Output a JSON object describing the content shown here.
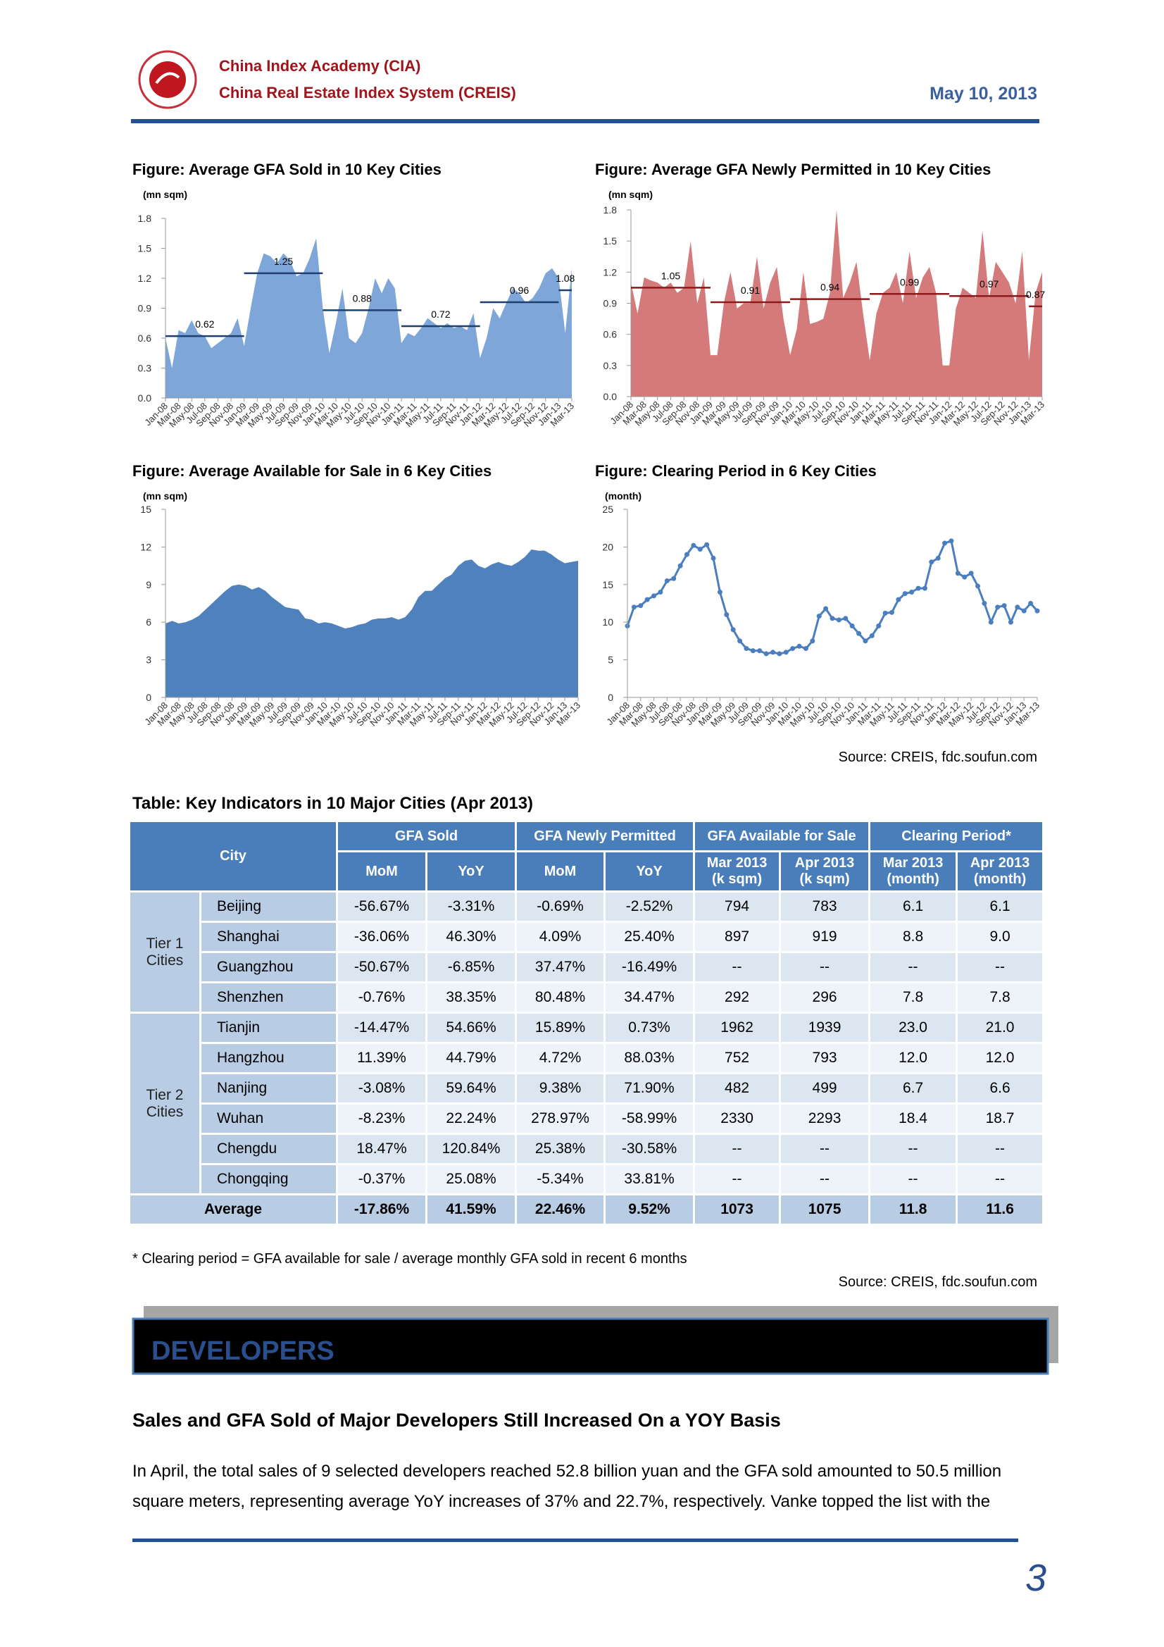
{
  "header": {
    "org1": "China Index Academy (CIA)",
    "org2": "China Real Estate Index System (CREIS)",
    "date": "May 10, 2013"
  },
  "chart_data": [
    {
      "type": "area",
      "title": "Figure: Average GFA Sold in 10 Key Cities",
      "unit": "(mn sqm)",
      "color": "#7ea6d8",
      "categories": [
        "Jan-08",
        null,
        "Mar-08",
        null,
        "May-08",
        null,
        "Jul-08",
        null,
        "Sep-08",
        null,
        "Nov-08",
        null,
        "Jan-09",
        null,
        "Mar-09",
        null,
        "May-09",
        null,
        "Jul-09",
        null,
        "Sep-09",
        null,
        "Nov-09",
        null,
        "Jan-10",
        null,
        "Mar-10",
        null,
        "May-10",
        null,
        "Jul-10",
        null,
        "Sep-10",
        null,
        "Nov-10",
        null,
        "Jan-11",
        null,
        "Mar-11",
        null,
        "May-11",
        null,
        "Jul-11",
        null,
        "Sep-11",
        null,
        "Nov-11",
        null,
        "Jan-12",
        null,
        "Mar-12",
        null,
        "May-12",
        null,
        "Jul-12",
        null,
        "Sep-12",
        null,
        "Nov-12",
        null,
        "Jan-13",
        null,
        "Mar-13"
      ],
      "values": [
        0.6,
        0.3,
        0.68,
        0.65,
        0.78,
        0.65,
        0.62,
        0.5,
        0.55,
        0.6,
        0.65,
        0.8,
        0.52,
        0.9,
        1.25,
        1.45,
        1.42,
        1.35,
        1.45,
        1.38,
        1.22,
        1.25,
        1.4,
        1.6,
        0.9,
        0.45,
        0.75,
        1.1,
        0.6,
        0.55,
        0.65,
        0.9,
        1.2,
        1.05,
        1.2,
        1.1,
        0.55,
        0.65,
        0.62,
        0.7,
        0.8,
        0.75,
        0.7,
        0.75,
        0.7,
        0.72,
        0.68,
        0.85,
        0.4,
        0.6,
        0.9,
        0.8,
        0.95,
        1.1,
        1.05,
        0.95,
        1.0,
        1.1,
        1.25,
        1.3,
        1.2,
        0.65,
        1.3
      ],
      "ylim": [
        0,
        1.8
      ],
      "yticks": [
        {
          "value": 0,
          "label": "0.0"
        },
        0.3,
        0.6,
        0.9,
        1.2,
        1.5,
        1.8
      ],
      "period_averages": {
        "values": [
          0.62,
          1.25,
          0.88,
          0.72,
          0.96,
          1.08
        ],
        "color": "#1f3f6e"
      }
    },
    {
      "type": "area",
      "title": "Figure: Average GFA Newly Permitted in 10 Key Cities",
      "unit": "(mn sqm)",
      "color": "#d57a7a",
      "categories": [
        "Jan-08",
        null,
        "Mar-08",
        null,
        "May-08",
        null,
        "Jul-08",
        null,
        "Sep-08",
        null,
        "Nov-08",
        null,
        "Jan-09",
        null,
        "Mar-09",
        null,
        "May-09",
        null,
        "Jul-09",
        null,
        "Sep-09",
        null,
        "Nov-09",
        null,
        "Jan-10",
        null,
        "Mar-10",
        null,
        "May-10",
        null,
        "Jul-10",
        null,
        "Sep-10",
        null,
        "Nov-10",
        null,
        "Jan-11",
        null,
        "Mar-11",
        null,
        "May-11",
        null,
        "Jul-11",
        null,
        "Sep-11",
        null,
        "Nov-11",
        null,
        "Jan-12",
        null,
        "Mar-12",
        null,
        "May-12",
        null,
        "Jul-12",
        null,
        "Sep-12",
        null,
        "Nov-12",
        null,
        "Jan-13",
        null,
        "Mar-13"
      ],
      "values": [
        1.1,
        0.8,
        1.15,
        1.12,
        1.1,
        1.05,
        1.1,
        1.0,
        1.05,
        1.5,
        0.9,
        1.15,
        0.4,
        0.4,
        0.9,
        1.2,
        0.85,
        0.9,
        0.9,
        1.35,
        0.85,
        1.1,
        1.25,
        0.75,
        0.4,
        0.65,
        1.2,
        0.7,
        0.72,
        0.75,
        1.0,
        1.8,
        0.95,
        1.1,
        1.3,
        0.8,
        0.35,
        0.8,
        1.0,
        1.05,
        1.2,
        0.9,
        1.4,
        0.95,
        1.15,
        1.25,
        1.0,
        0.3,
        0.3,
        0.85,
        1.05,
        1.0,
        0.95,
        1.6,
        0.95,
        1.3,
        1.2,
        1.1,
        0.9,
        1.4,
        0.35,
        1.0,
        1.2
      ],
      "ylim": [
        0,
        1.8
      ],
      "yticks": [
        {
          "value": 0,
          "label": "0.0"
        },
        0.3,
        0.6,
        0.9,
        1.2,
        1.5,
        1.8
      ],
      "period_averages": {
        "values": [
          1.05,
          0.91,
          0.94,
          0.99,
          0.97,
          0.87
        ],
        "color": "#8b1a1a"
      }
    },
    {
      "type": "area",
      "title": "Figure: Average Available for Sale in 6 Key Cities",
      "unit": "(mn sqm)",
      "color": "#4f81bd",
      "categories": [
        "Jan-08",
        null,
        "Mar-08",
        null,
        "May-08",
        null,
        "Jul-08",
        null,
        "Sep-08",
        null,
        "Nov-08",
        null,
        "Jan-09",
        null,
        "Mar-09",
        null,
        "May-09",
        null,
        "Jul-09",
        null,
        "Sep-09",
        null,
        "Nov-09",
        null,
        "Jan-10",
        null,
        "Mar-10",
        null,
        "May-10",
        null,
        "Jul-10",
        null,
        "Sep-10",
        null,
        "Nov-10",
        null,
        "Jan-11",
        null,
        "Mar-11",
        null,
        "May-11",
        null,
        "Jul-11",
        null,
        "Sep-11",
        null,
        "Nov-11",
        null,
        "Jan-12",
        null,
        "Mar-12",
        null,
        "May-12",
        null,
        "Jul-12",
        null,
        "Sep-12",
        null,
        "Nov-12",
        null,
        "Jan-13",
        null,
        "Mar-13"
      ],
      "values": [
        5.9,
        6.1,
        5.9,
        6.0,
        6.2,
        6.5,
        7.0,
        7.5,
        8.0,
        8.5,
        8.9,
        9.0,
        8.9,
        8.6,
        8.8,
        8.5,
        8.0,
        7.6,
        7.2,
        7.1,
        7.0,
        6.3,
        6.2,
        5.9,
        6.0,
        5.9,
        5.7,
        5.5,
        5.6,
        5.8,
        5.9,
        6.2,
        6.3,
        6.3,
        6.4,
        6.2,
        6.4,
        7.0,
        8.0,
        8.5,
        8.5,
        9.0,
        9.5,
        9.8,
        10.5,
        10.9,
        11.0,
        10.5,
        10.3,
        10.6,
        10.8,
        10.6,
        10.5,
        10.8,
        11.2,
        11.8,
        11.7,
        11.7,
        11.4,
        11.0,
        10.7,
        10.8,
        10.9
      ],
      "ylim": [
        0,
        15
      ],
      "yticks": [
        0,
        3,
        6,
        9,
        12,
        15
      ]
    },
    {
      "type": "line",
      "title": "Figure: Clearing Period in 6 Key Cities",
      "unit": "(month)",
      "color": "#4a7ebf",
      "categories": [
        "Jan-08",
        null,
        "Mar-08",
        null,
        "May-08",
        null,
        "Jul-08",
        null,
        "Sep-08",
        null,
        "Nov-08",
        null,
        "Jan-09",
        null,
        "Mar-09",
        null,
        "May-09",
        null,
        "Jul-09",
        null,
        "Sep-09",
        null,
        "Nov-09",
        null,
        "Jan-10",
        null,
        "Mar-10",
        null,
        "May-10",
        null,
        "Jul-10",
        null,
        "Sep-10",
        null,
        "Nov-10",
        null,
        "Jan-11",
        null,
        "Mar-11",
        null,
        "May-11",
        null,
        "Jul-11",
        null,
        "Sep-11",
        null,
        "Nov-11",
        null,
        "Jan-12",
        null,
        "Mar-12",
        null,
        "May-12",
        null,
        "Jul-12",
        null,
        "Sep-12",
        null,
        "Nov-12",
        null,
        "Jan-13",
        null,
        "Mar-13"
      ],
      "values": [
        9.5,
        12,
        12.2,
        13,
        13.5,
        14,
        15.5,
        15.8,
        17.5,
        19,
        20.2,
        19.7,
        20.3,
        18.5,
        14,
        11,
        9,
        7.5,
        6.5,
        6.2,
        6.2,
        5.8,
        6.0,
        5.8,
        6.0,
        6.5,
        6.8,
        6.5,
        7.5,
        10.8,
        11.8,
        10.5,
        10.3,
        10.5,
        9.5,
        8.5,
        7.5,
        8.2,
        9.5,
        11.2,
        11.3,
        13,
        13.8,
        14,
        14.5,
        14.5,
        18,
        18.5,
        20.5,
        20.8,
        16.5,
        16,
        16.5,
        14.8,
        12.5,
        10,
        12,
        12.2,
        10,
        12,
        11.5,
        12.5,
        11.5
      ],
      "ylim": [
        0,
        25
      ],
      "yticks": [
        0,
        5,
        10,
        15,
        20,
        25
      ]
    }
  ],
  "chart_source": "Source: CREIS, fdc.soufun.com",
  "table": {
    "title": "Table: Key Indicators in 10 Major Cities (Apr 2013)",
    "header": {
      "city": "City",
      "groups": [
        "GFA Sold",
        "GFA Newly Permitted",
        "GFA Available for Sale",
        "Clearing Period*"
      ],
      "sub": [
        [
          "MoM"
        ],
        [
          "YoY"
        ],
        [
          "MoM"
        ],
        [
          "YoY"
        ],
        [
          "Mar 2013",
          "(k sqm)"
        ],
        [
          "Apr 2013",
          "(k sqm)"
        ],
        [
          "Mar 2013",
          "(month)"
        ],
        [
          "Apr 2013",
          "(month)"
        ]
      ]
    },
    "groups": [
      {
        "label": "Tier 1 Cities",
        "rows": [
          {
            "city": "Beijing",
            "values": [
              "-56.67%",
              "-3.31%",
              "-0.69%",
              "-2.52%",
              "794",
              "783",
              "6.1",
              "6.1"
            ]
          },
          {
            "city": "Shanghai",
            "values": [
              "-36.06%",
              "46.30%",
              "4.09%",
              "25.40%",
              "897",
              "919",
              "8.8",
              "9.0"
            ]
          },
          {
            "city": "Guangzhou",
            "values": [
              "-50.67%",
              "-6.85%",
              "37.47%",
              "-16.49%",
              "--",
              "--",
              "--",
              "--"
            ]
          },
          {
            "city": "Shenzhen",
            "values": [
              "-0.76%",
              "38.35%",
              "80.48%",
              "34.47%",
              "292",
              "296",
              "7.8",
              "7.8"
            ]
          }
        ]
      },
      {
        "label": "Tier 2 Cities",
        "rows": [
          {
            "city": "Tianjin",
            "values": [
              "-14.47%",
              "54.66%",
              "15.89%",
              "0.73%",
              "1962",
              "1939",
              "23.0",
              "21.0"
            ]
          },
          {
            "city": "Hangzhou",
            "values": [
              "11.39%",
              "44.79%",
              "4.72%",
              "88.03%",
              "752",
              "793",
              "12.0",
              "12.0"
            ]
          },
          {
            "city": "Nanjing",
            "values": [
              "-3.08%",
              "59.64%",
              "9.38%",
              "71.90%",
              "482",
              "499",
              "6.7",
              "6.6"
            ]
          },
          {
            "city": "Wuhan",
            "values": [
              "-8.23%",
              "22.24%",
              "278.97%",
              "-58.99%",
              "2330",
              "2293",
              "18.4",
              "18.7"
            ]
          },
          {
            "city": "Chengdu",
            "values": [
              "18.47%",
              "120.84%",
              "25.38%",
              "-30.58%",
              "--",
              "--",
              "--",
              "--"
            ]
          },
          {
            "city": "Chongqing",
            "values": [
              "-0.37%",
              "25.08%",
              "-5.34%",
              "33.81%",
              "--",
              "--",
              "--",
              "--"
            ]
          }
        ]
      }
    ],
    "average": {
      "label": "Average",
      "values": [
        "-17.86%",
        "41.59%",
        "22.46%",
        "9.52%",
        "1073",
        "1075",
        "11.8",
        "11.6"
      ]
    },
    "footnote": "* Clearing period = GFA available for sale / average monthly GFA sold in recent 6 months",
    "source": "Source: CREIS, fdc.soufun.com"
  },
  "section": "DEVELOPERS",
  "heading": "Sales and GFA Sold of Major Developers Still Increased On a YOY Basis",
  "paragraph": [
    "In April, the total sales of 9 selected developers reached 52.8 billion yuan and the GFA sold amounted to 50.5 million",
    "square meters, representing average YoY increases of 37% and 22.7%, respectively. Vanke topped the list with the"
  ],
  "page_number": "3"
}
